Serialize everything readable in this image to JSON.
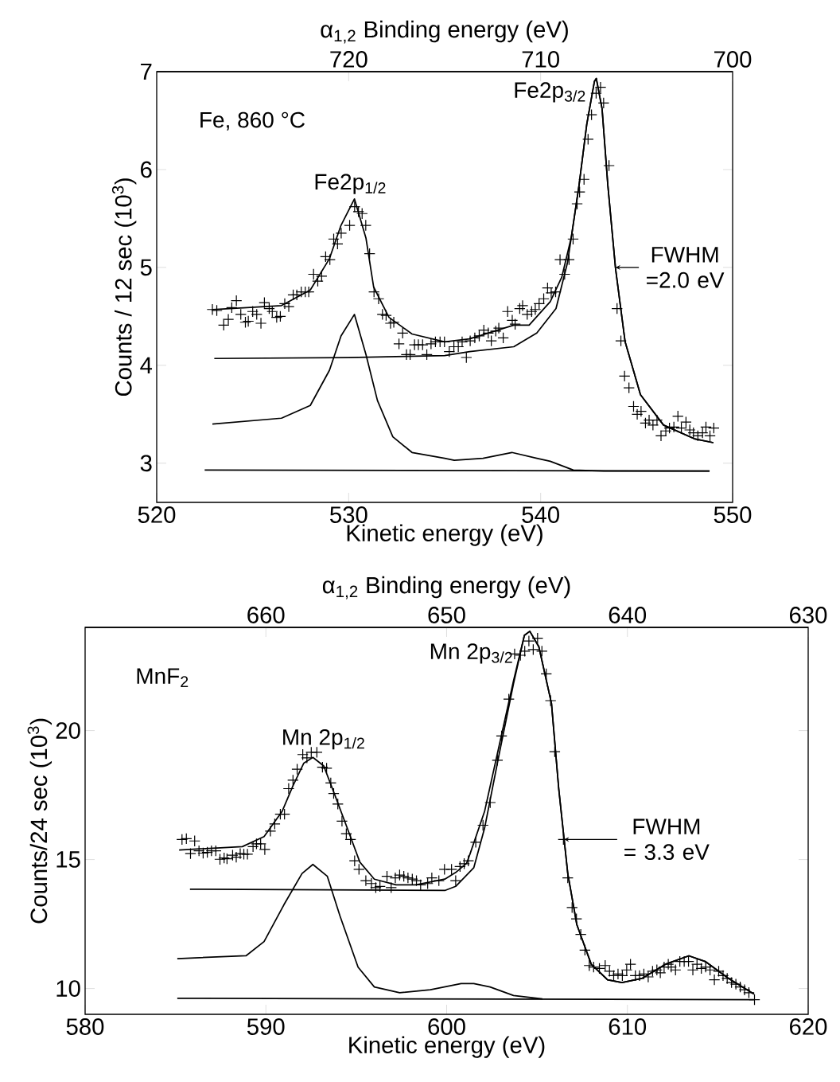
{
  "chart_data": [
    {
      "type": "line",
      "xlabel": "Kinetic energy (eV)",
      "ylabel": "Counts / 12 sec (10$^{3}$)",
      "x2label": "α$_{1,2}$ Binding energy (eV)",
      "xlim": [
        520,
        550
      ],
      "xticks": [
        520,
        530,
        540,
        550
      ],
      "ylim": [
        2.6,
        7.0
      ],
      "yticks": [
        3,
        4,
        5,
        6,
        7
      ],
      "x2lim": [
        730,
        700
      ],
      "x2ticks": [
        720,
        710,
        700
      ],
      "annotations": [
        "Fe, 860 °C",
        {
          "text": "Fe2p$_{1/2}$",
          "x": 530.3,
          "y": 5.7
        },
        {
          "text": "Fe2p$_{3/2}$",
          "x": 542.9,
          "y": 6.93
        },
        {
          "text": "FWHM =2.0 eV",
          "x": 543.9,
          "y": 5.0
        }
      ],
      "series": [
        {
          "type": "scatter",
          "marker": "cross",
          "color": "#000000",
          "x": [
            522.9,
            523.13,
            523.49,
            523.73,
            523.91,
            524.15,
            524.38,
            524.62,
            524.77,
            525.0,
            525.21,
            525.43,
            525.61,
            525.86,
            526.02,
            526.25,
            526.44,
            526.67,
            526.88,
            527.11,
            527.3,
            527.53,
            527.74,
            527.92,
            528.17,
            528.39,
            528.59,
            528.8,
            529.02,
            529.22,
            529.42,
            529.61,
            530.05,
            530.31,
            530.51,
            530.7,
            530.89,
            531.09,
            531.32,
            531.56,
            531.76,
            531.95,
            532.18,
            532.35,
            532.62,
            532.81,
            533.01,
            533.2,
            533.43,
            533.63,
            533.85,
            534.07,
            534.29,
            534.52,
            534.76,
            534.99,
            535.24,
            535.48,
            535.71,
            535.91,
            536.13,
            536.33,
            536.57,
            536.8,
            537.04,
            537.27,
            537.43,
            537.66,
            537.82,
            538.05,
            538.28,
            538.52,
            538.67,
            538.91,
            539.06,
            539.3,
            539.53,
            539.72,
            539.92,
            540.16,
            540.36,
            540.55,
            540.78,
            541.01,
            541.25,
            541.48,
            541.69,
            541.9,
            542.03,
            542.26,
            542.47,
            542.65,
            542.89,
            543.12,
            543.28,
            543.56,
            543.98,
            544.18,
            544.37,
            544.6,
            544.84,
            545.03,
            545.23,
            545.46,
            545.65,
            545.85,
            546.06,
            546.27,
            546.52,
            546.71,
            546.94,
            547.15,
            547.33,
            547.57,
            547.77,
            547.96,
            548.19,
            548.43,
            548.61,
            548.82,
            549.02
          ],
          "values": [
            4.57,
            4.56,
            4.41,
            4.47,
            4.59,
            4.66,
            4.52,
            4.44,
            4.45,
            4.55,
            4.52,
            4.43,
            4.64,
            4.58,
            4.55,
            4.49,
            4.5,
            4.63,
            4.6,
            4.72,
            4.72,
            4.75,
            4.75,
            4.75,
            4.93,
            4.86,
            4.91,
            5.11,
            5.08,
            5.29,
            5.24,
            5.35,
            5.43,
            5.62,
            5.57,
            5.55,
            5.43,
            5.14,
            4.75,
            4.68,
            4.52,
            4.51,
            4.43,
            4.44,
            4.22,
            4.33,
            4.11,
            4.11,
            4.21,
            4.21,
            4.21,
            4.11,
            4.22,
            4.24,
            4.24,
            4.24,
            4.14,
            4.19,
            4.19,
            4.24,
            4.08,
            4.25,
            4.28,
            4.3,
            4.36,
            4.33,
            4.25,
            4.35,
            4.38,
            4.28,
            4.55,
            4.46,
            4.42,
            4.58,
            4.61,
            4.52,
            4.55,
            4.57,
            4.63,
            4.68,
            4.79,
            4.74,
            4.75,
            5.08,
            4.93,
            5.08,
            5.29,
            5.65,
            5.77,
            5.9,
            6.31,
            6.56,
            6.78,
            6.84,
            6.68,
            6.04,
            4.58,
            4.25,
            3.89,
            3.77,
            3.58,
            3.5,
            3.53,
            3.41,
            3.44,
            3.39,
            3.44,
            3.28,
            3.33,
            3.36,
            3.37,
            3.48,
            3.36,
            3.42,
            3.34,
            3.31,
            3.28,
            3.31,
            3.37,
            3.28,
            3.36
          ]
        },
        {
          "color": "#000000",
          "x": [
            522.9,
            526.5,
            528.0,
            529.0,
            529.6,
            530.3,
            530.9,
            531.3,
            532.1,
            533.3,
            535.0,
            536.3,
            538.6,
            539.4,
            540.5,
            541.1,
            541.6,
            542.0,
            542.4,
            542.8,
            542.9,
            543.2,
            543.5,
            543.9,
            544.4,
            545.2,
            546.4,
            548.0,
            549.0
          ],
          "values": [
            4.57,
            4.61,
            4.77,
            5.09,
            5.43,
            5.7,
            5.3,
            4.8,
            4.49,
            4.32,
            4.24,
            4.27,
            4.41,
            4.41,
            4.65,
            4.9,
            5.31,
            5.84,
            6.46,
            6.9,
            6.93,
            6.62,
            5.84,
            4.99,
            4.24,
            3.7,
            3.39,
            3.25,
            3.21
          ]
        },
        {
          "color": "#000000",
          "x": [
            523.0,
            530.0,
            535.0,
            536.3,
            538.6,
            539.8,
            540.8,
            541.4,
            542.0,
            542.4,
            542.8,
            542.9,
            543.2,
            543.5,
            543.9,
            544.4,
            545.2,
            546.4,
            548.0,
            549.0
          ],
          "values": [
            4.07,
            4.08,
            4.1,
            4.14,
            4.19,
            4.33,
            4.58,
            5.05,
            5.84,
            6.46,
            6.9,
            6.93,
            6.62,
            5.84,
            4.99,
            4.24,
            3.7,
            3.39,
            3.25,
            3.21
          ]
        },
        {
          "color": "#000000",
          "x": [
            522.9,
            526.5,
            528.0,
            529.0,
            529.6,
            530.3,
            530.9,
            531.5,
            532.3,
            533.3,
            535.0,
            535.5,
            537.0,
            538.5,
            539.8,
            540.5,
            541.7,
            543.3,
            548.8
          ],
          "values": [
            3.4,
            3.46,
            3.59,
            3.95,
            4.3,
            4.52,
            4.11,
            3.64,
            3.27,
            3.11,
            3.05,
            3.03,
            3.05,
            3.11,
            3.05,
            3.02,
            2.93,
            2.92,
            2.92
          ]
        },
        {
          "color": "#000000",
          "x": [
            522.5,
            548.8
          ],
          "values": [
            2.93,
            2.92
          ]
        }
      ]
    },
    {
      "type": "line",
      "xlabel": "Kinetic energy (eV)",
      "ylabel": "Counts/24 sec (10$^{3}$)",
      "x2label": "α$_{1,2}$ Binding energy (eV)",
      "xlim": [
        580,
        620
      ],
      "xticks": [
        580,
        590,
        600,
        610,
        620
      ],
      "ylim": [
        9,
        24
      ],
      "yticks": [
        10,
        15,
        20
      ],
      "x2lim": [
        670,
        630
      ],
      "x2ticks": [
        660,
        650,
        640,
        630
      ],
      "annotations": [
        "MnF$_{2}$",
        {
          "text": "Mn 2p$_{1/2}$",
          "x": 592.6,
          "y": 18.96
        },
        {
          "text": "Mn 2p$_{3/2}$",
          "x": 604.6,
          "y": 23.85
        },
        {
          "text": "FWHM = 3.3 eV",
          "x": 606.5,
          "y": 15.78
        }
      ],
      "series": [
        {
          "type": "scatter",
          "marker": "cross",
          "color": "#000000",
          "x": [
            585.36,
            585.6,
            585.83,
            586.06,
            586.3,
            586.53,
            586.76,
            586.99,
            587.23,
            587.46,
            587.69,
            587.85,
            588.16,
            588.36,
            588.58,
            588.78,
            588.98,
            589.29,
            589.48,
            589.71,
            589.94,
            590.25,
            590.49,
            590.8,
            591.03,
            591.26,
            591.5,
            591.73,
            592.04,
            592.27,
            592.51,
            592.82,
            593.13,
            593.36,
            593.59,
            593.75,
            593.98,
            594.21,
            594.45,
            594.68,
            594.91,
            595.15,
            595.53,
            595.84,
            596.08,
            596.31,
            596.7,
            596.93,
            597.16,
            597.4,
            597.63,
            597.86,
            598.1,
            598.33,
            598.56,
            598.95,
            599.18,
            599.57,
            599.88,
            600.27,
            600.5,
            600.74,
            600.97,
            601.2,
            601.61,
            602.01,
            602.41,
            602.81,
            603.04,
            603.44,
            603.76,
            604.08,
            604.32,
            604.55,
            604.79,
            605.03,
            605.27,
            605.51,
            605.75,
            605.98,
            606.46,
            606.7,
            606.94,
            607.18,
            607.42,
            607.65,
            607.89,
            608.13,
            608.45,
            608.77,
            609.01,
            609.24,
            609.48,
            609.72,
            609.96,
            610.17,
            610.44,
            610.67,
            610.91,
            611.15,
            611.39,
            611.63,
            611.82,
            612.03,
            612.26,
            612.42,
            612.66,
            612.9,
            613.14,
            613.38,
            613.62,
            613.85,
            614.09,
            614.33,
            614.57,
            614.81,
            615.05,
            615.29,
            615.52,
            615.76,
            616.0,
            616.24,
            616.48,
            616.72,
            617.03
          ],
          "values": [
            15.78,
            15.81,
            15.23,
            15.72,
            15.34,
            15.25,
            15.28,
            15.34,
            15.34,
            15.01,
            15.06,
            15.03,
            15.17,
            15.09,
            15.23,
            15.21,
            15.21,
            15.5,
            15.61,
            15.61,
            15.39,
            16.1,
            16.38,
            16.76,
            16.76,
            17.75,
            18.08,
            18.5,
            19.07,
            18.94,
            19.16,
            19.16,
            18.58,
            18.54,
            17.97,
            17.56,
            17.15,
            16.49,
            16.0,
            15.78,
            14.95,
            14.62,
            14.18,
            14.07,
            13.91,
            13.96,
            14.35,
            13.91,
            14.29,
            14.4,
            14.35,
            14.29,
            14.24,
            14.18,
            14.02,
            14.07,
            14.29,
            14.18,
            14.62,
            14.62,
            14.18,
            14.73,
            14.84,
            14.95,
            15.67,
            16.33,
            17.21,
            18.85,
            19.79,
            21.22,
            22.97,
            22.92,
            23.08,
            23.47,
            23.14,
            23.58,
            23.08,
            22.2,
            21.16,
            19.18,
            15.78,
            14.29,
            13.14,
            12.7,
            12.1,
            11.49,
            10.89,
            10.83,
            10.78,
            10.89,
            10.67,
            10.5,
            10.56,
            10.5,
            10.72,
            10.94,
            10.5,
            10.5,
            10.56,
            10.45,
            10.67,
            10.72,
            10.61,
            10.83,
            10.94,
            10.83,
            10.72,
            11.05,
            11.05,
            11.05,
            10.72,
            10.94,
            10.78,
            10.83,
            10.72,
            10.34,
            10.67,
            10.5,
            10.39,
            10.23,
            10.17,
            10.06,
            9.95,
            9.84,
            9.57
          ]
        },
        {
          "color": "#000000",
          "x": [
            585.2,
            588.7,
            589.9,
            590.9,
            591.5,
            592.1,
            592.6,
            593.2,
            593.8,
            594.5,
            595.2,
            596.0,
            597.2,
            598.3,
            599.9,
            600.5,
            601.1,
            601.3,
            602.1,
            602.9,
            603.7,
            604.3,
            604.6,
            605.1,
            605.8,
            606.2,
            606.7,
            607.2,
            608.0,
            608.9,
            609.7,
            610.8,
            612.1,
            613.4,
            614.3,
            615.6,
            617.0
          ],
          "values": [
            15.37,
            15.5,
            15.89,
            16.87,
            17.86,
            18.74,
            18.96,
            18.63,
            17.53,
            16.22,
            14.9,
            14.24,
            14.02,
            14.02,
            14.24,
            14.5,
            14.85,
            15.23,
            16.87,
            19.4,
            21.93,
            23.69,
            23.85,
            23.25,
            21.05,
            17.75,
            14.46,
            12.48,
            10.94,
            10.34,
            10.23,
            10.39,
            10.94,
            11.27,
            11.05,
            10.39,
            9.79
          ]
        },
        {
          "color": "#000000",
          "x": [
            585.8,
            599.9,
            600.5,
            601.5,
            602.1,
            602.9,
            603.7,
            604.3,
            604.6,
            605.1,
            605.8,
            606.2,
            606.7,
            607.2,
            608.0,
            608.9,
            609.7,
            610.8,
            612.1,
            613.4,
            614.3,
            615.6,
            617.0
          ],
          "values": [
            13.85,
            13.8,
            13.96,
            14.68,
            16.22,
            19.07,
            21.82,
            23.69,
            23.85,
            23.25,
            21.05,
            17.75,
            14.46,
            12.48,
            10.94,
            10.34,
            10.23,
            10.39,
            10.94,
            11.27,
            11.05,
            10.39,
            9.79
          ]
        },
        {
          "color": "#000000",
          "x": [
            585.1,
            588.9,
            589.9,
            591.0,
            592.0,
            592.6,
            593.4,
            594.1,
            595.1,
            596.0,
            597.4,
            599.1,
            600.8,
            601.5,
            602.4,
            603.7,
            605.3
          ],
          "values": [
            11.16,
            11.27,
            11.82,
            13.25,
            14.46,
            14.81,
            14.35,
            12.81,
            10.83,
            10.06,
            9.84,
            9.95,
            10.19,
            10.19,
            10.06,
            9.73,
            9.6
          ]
        },
        {
          "color": "#000000",
          "x": [
            585.1,
            617.0
          ],
          "values": [
            9.62,
            9.57
          ]
        }
      ]
    }
  ]
}
